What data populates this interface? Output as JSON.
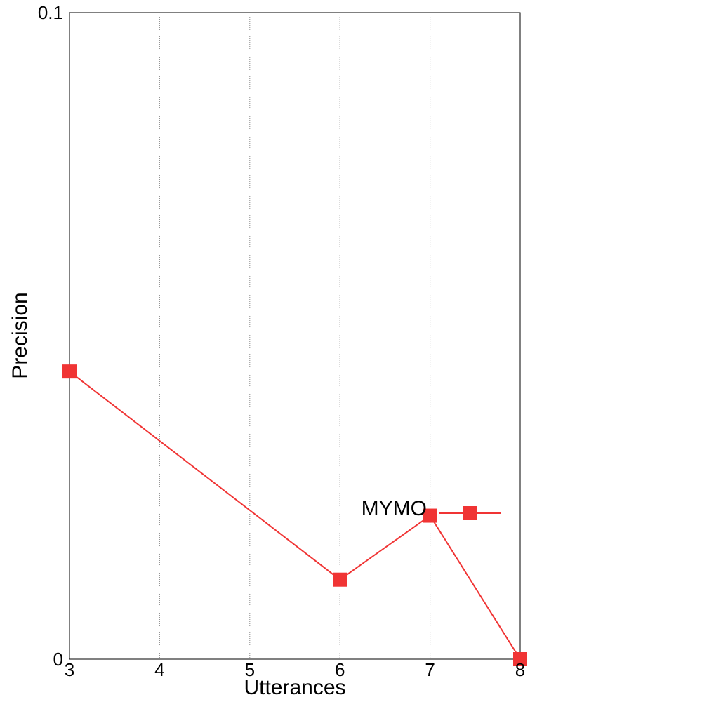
{
  "chart_data": {
    "type": "line",
    "title": "",
    "xlabel": "Utterances",
    "ylabel": "Precision",
    "xlim": [
      3,
      8
    ],
    "ylim": [
      0,
      0.1
    ],
    "x_ticks": [
      "3",
      "4",
      "5",
      "6",
      "7",
      "8"
    ],
    "y_ticks": [
      "0",
      "0.1"
    ],
    "grid": "vertical-dotted",
    "legend_placement": "bottom-right inside",
    "series": [
      {
        "name": "MYMO",
        "color": "#f03434",
        "marker": "square",
        "x": [
          3,
          6,
          7,
          8
        ],
        "y": [
          0.0445,
          0.0123,
          0.0222,
          0.0
        ]
      }
    ]
  }
}
